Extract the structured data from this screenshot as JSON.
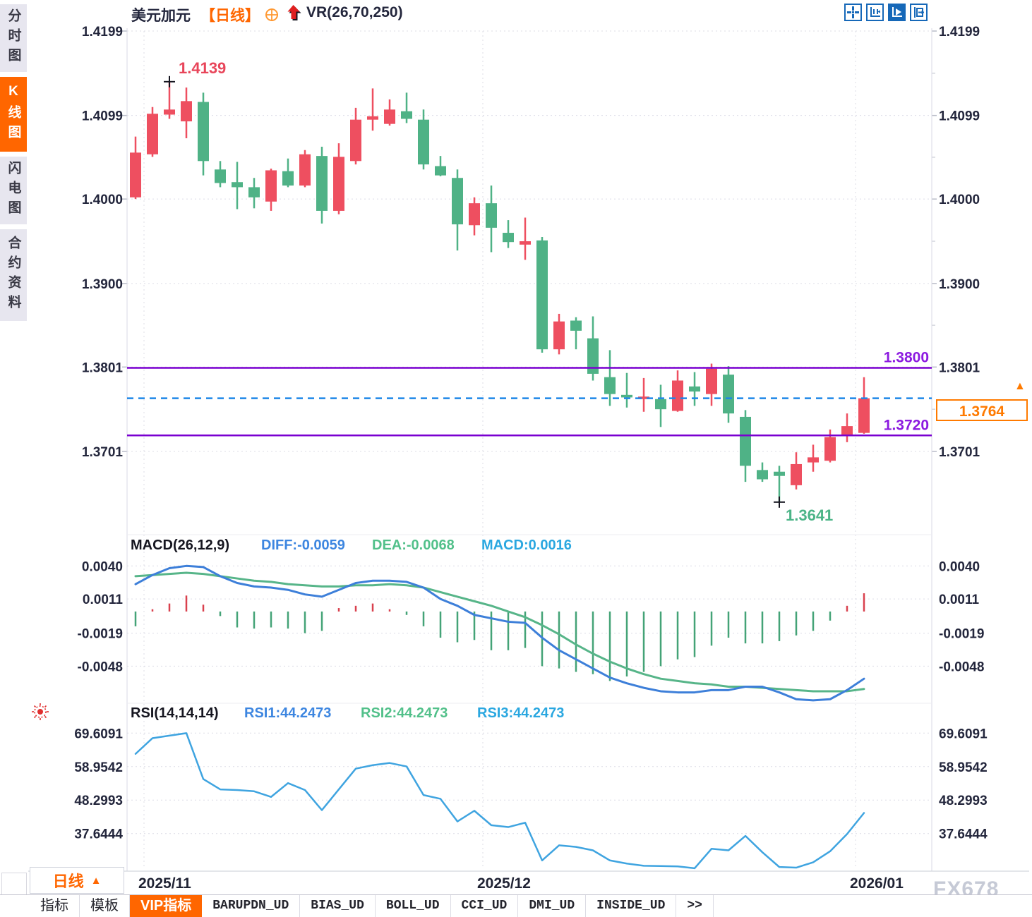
{
  "header": {
    "title": "美元加元",
    "period_tag": "【日线】",
    "indicator": "VR(26,70,250)",
    "icons": [
      "crosshair-target-icon",
      "red-up-arrow-icon"
    ]
  },
  "toolbar": {
    "icons": [
      "move-crosshair-icon",
      "axis-scale-icon",
      "axis-play-icon",
      "shift-right-icon"
    ],
    "active_index": 2
  },
  "sidebar": {
    "items": [
      {
        "label": "分时图",
        "active": false
      },
      {
        "label": "K线图",
        "active": true
      },
      {
        "label": "闪电图",
        "active": false
      },
      {
        "label": "合约资料",
        "active": false
      }
    ]
  },
  "period_selector": {
    "label": "日线",
    "arrow": "▲"
  },
  "price_tag": {
    "label": "1.3764",
    "arrow": "▲"
  },
  "watermark": "FX678",
  "tabs": {
    "items": [
      {
        "label": "指标",
        "active": false,
        "mono": false
      },
      {
        "label": "模板",
        "active": false,
        "mono": false
      },
      {
        "label": "VIP指标",
        "active": true,
        "mono": false
      },
      {
        "label": "BARUPDN_UD",
        "active": false,
        "mono": true
      },
      {
        "label": "BIAS_UD",
        "active": false,
        "mono": true
      },
      {
        "label": "BOLL_UD",
        "active": false,
        "mono": true
      },
      {
        "label": "CCI_UD",
        "active": false,
        "mono": true
      },
      {
        "label": "DMI_UD",
        "active": false,
        "mono": true
      },
      {
        "label": "INSIDE_UD",
        "active": false,
        "mono": true
      },
      {
        "label": ">>",
        "active": false,
        "mono": true
      }
    ]
  },
  "colors": {
    "up": "#ee4f60",
    "down": "#4fb286",
    "hist_up": "#d9414e",
    "hist_down": "#44a377",
    "diff_line": "#3d7fd9",
    "dea_line": "#57b589",
    "diff_text": "#3d86e0",
    "dea_text": "#52c08a",
    "macd_value_text": "#2aa7e0",
    "rsi_line": "#3fa4e0",
    "level": "#7a00d0",
    "level_text": "#8c1ae0",
    "current": "#1d86e8",
    "accent_orange": "#ff6600",
    "axis_text": "#23263c",
    "grid": "#dcdce6",
    "high_text": "#e8455a",
    "low_text": "#4bb487",
    "icon_blue": "#1668b8"
  },
  "chart_data": {
    "type": "candlestick",
    "symbol": "美元加元",
    "period": "日线",
    "y_axis": [
      "1.4199",
      "1.4099",
      "1.4000",
      "1.3900",
      "1.3801",
      "1.3701"
    ],
    "x_labels": [
      {
        "label": "2025/11",
        "index": 0
      },
      {
        "label": "2025/12",
        "index": 20
      },
      {
        "label": "2026/01",
        "index": 42
      }
    ],
    "candles": [
      [
        1.4002,
        1.4074,
        1.4,
        1.4055
      ],
      [
        1.4053,
        1.4109,
        1.405,
        1.4101
      ],
      [
        1.41,
        1.4139,
        1.4095,
        1.4106
      ],
      [
        1.4092,
        1.4132,
        1.4072,
        1.4116
      ],
      [
        1.4115,
        1.4126,
        1.4028,
        1.4045
      ],
      [
        1.4035,
        1.4045,
        1.4014,
        1.4019
      ],
      [
        1.402,
        1.4044,
        1.3988,
        1.4014
      ],
      [
        1.4014,
        1.4025,
        1.3989,
        1.4002
      ],
      [
        1.3997,
        1.4036,
        1.3986,
        1.4034
      ],
      [
        1.4033,
        1.4048,
        1.4014,
        1.4016
      ],
      [
        1.4016,
        1.4058,
        1.4014,
        1.4053
      ],
      [
        1.4051,
        1.4062,
        1.3971,
        1.3986
      ],
      [
        1.3986,
        1.4066,
        1.3982,
        1.405
      ],
      [
        1.4045,
        1.4108,
        1.4041,
        1.4094
      ],
      [
        1.4094,
        1.4131,
        1.4081,
        1.4098
      ],
      [
        1.4089,
        1.4118,
        1.4087,
        1.4106
      ],
      [
        1.4104,
        1.4126,
        1.409,
        1.4095
      ],
      [
        1.4094,
        1.4106,
        1.4035,
        1.4041
      ],
      [
        1.4039,
        1.4051,
        1.4027,
        1.4028
      ],
      [
        1.4025,
        1.4035,
        1.3939,
        1.397
      ],
      [
        1.3969,
        1.4002,
        1.3957,
        1.3995
      ],
      [
        1.3995,
        1.4016,
        1.3937,
        1.3966
      ],
      [
        1.396,
        1.3975,
        1.3942,
        1.3949
      ],
      [
        1.3946,
        1.3978,
        1.3928,
        1.395
      ],
      [
        1.3951,
        1.3955,
        1.3818,
        1.3822
      ],
      [
        1.3822,
        1.3864,
        1.3816,
        1.3855
      ],
      [
        1.3856,
        1.386,
        1.3822,
        1.3844
      ],
      [
        1.3835,
        1.3861,
        1.3785,
        1.3793
      ],
      [
        1.3789,
        1.3821,
        1.3755,
        1.3769
      ],
      [
        1.3768,
        1.3794,
        1.3753,
        1.3765
      ],
      [
        1.3763,
        1.3788,
        1.3748,
        1.3766
      ],
      [
        1.3763,
        1.378,
        1.373,
        1.3751
      ],
      [
        1.3749,
        1.3797,
        1.3748,
        1.3785
      ],
      [
        1.3778,
        1.3795,
        1.3755,
        1.3772
      ],
      [
        1.3769,
        1.3805,
        1.3755,
        1.3799
      ],
      [
        1.3792,
        1.3802,
        1.3735,
        1.3746
      ],
      [
        1.3742,
        1.375,
        1.3665,
        1.3684
      ],
      [
        1.3679,
        1.3688,
        1.3665,
        1.3668
      ],
      [
        1.3677,
        1.3684,
        1.3641,
        1.3672
      ],
      [
        1.3661,
        1.37,
        1.3656,
        1.3686
      ],
      [
        1.3688,
        1.3709,
        1.3677,
        1.3694
      ],
      [
        1.369,
        1.3727,
        1.3688,
        1.3718
      ],
      [
        1.3719,
        1.3746,
        1.3712,
        1.3731
      ],
      [
        1.3723,
        1.3789,
        1.3722,
        1.3764
      ]
    ],
    "high_marker": {
      "value": "1.4139",
      "index": 2
    },
    "low_marker": {
      "value": "1.3641",
      "index": 38
    },
    "levels": [
      {
        "value": 1.38,
        "label": "1.3800"
      },
      {
        "value": 1.372,
        "label": "1.3720"
      }
    ],
    "current_price": {
      "value": 1.3764,
      "label": "1.3764"
    },
    "macd": {
      "title": "MACD(26,12,9)",
      "diff_label": "DIFF:-0.0059",
      "dea_label": "DEA:-0.0068",
      "macd_label": "MACD:0.0016",
      "axis": [
        "0.0040",
        "0.0011",
        "-0.0019",
        "-0.0048"
      ],
      "diff": [
        0.0024,
        0.0032,
        0.0038,
        0.004,
        0.0039,
        0.0031,
        0.0025,
        0.0022,
        0.0021,
        0.0019,
        0.0015,
        0.0013,
        0.0019,
        0.0025,
        0.0027,
        0.0027,
        0.0026,
        0.0021,
        0.0011,
        0.0005,
        -0.0003,
        -0.0006,
        -0.0009,
        -0.001,
        -0.0023,
        -0.0034,
        -0.0042,
        -0.005,
        -0.0058,
        -0.0063,
        -0.0067,
        -0.007,
        -0.0071,
        -0.0071,
        -0.0069,
        -0.0069,
        -0.0066,
        -0.0066,
        -0.0071,
        -0.0077,
        -0.0078,
        -0.0077,
        -0.0069,
        -0.0059
      ],
      "dea": [
        0.0031,
        0.0032,
        0.0033,
        0.0034,
        0.0033,
        0.0031,
        0.0029,
        0.0027,
        0.0026,
        0.0024,
        0.0023,
        0.0022,
        0.0022,
        0.0023,
        0.0023,
        0.0024,
        0.0023,
        0.0021,
        0.0017,
        0.0013,
        0.0009,
        0.0005,
        0.0,
        -0.0005,
        -0.0012,
        -0.002,
        -0.0029,
        -0.0037,
        -0.0044,
        -0.005,
        -0.0055,
        -0.0059,
        -0.0061,
        -0.0063,
        -0.0064,
        -0.0066,
        -0.0066,
        -0.0067,
        -0.0068,
        -0.0069,
        -0.007,
        -0.007,
        -0.007,
        -0.0068
      ],
      "hist": [
        -0.0013,
        0.0002,
        0.0007,
        0.0014,
        0.0006,
        -0.0004,
        -0.0014,
        -0.0015,
        -0.0014,
        -0.0015,
        -0.0019,
        -0.0017,
        0.0003,
        0.0005,
        0.0007,
        0.0002,
        -0.0003,
        -0.0013,
        -0.0023,
        -0.0027,
        -0.0025,
        -0.0034,
        -0.0034,
        -0.0032,
        -0.0048,
        -0.005,
        -0.0053,
        -0.0055,
        -0.0061,
        -0.0057,
        -0.0053,
        -0.0048,
        -0.0042,
        -0.004,
        -0.003,
        -0.0023,
        -0.0028,
        -0.0028,
        -0.0026,
        -0.0021,
        -0.0017,
        -0.0008,
        0.0005,
        0.0016
      ]
    },
    "rsi": {
      "title": "RSI(14,14,14)",
      "rsi1_label": "RSI1:44.2473",
      "rsi2_label": "RSI2:44.2473",
      "rsi3_label": "RSI3:44.2473",
      "axis": [
        "69.6091",
        "58.9542",
        "48.2993",
        "37.6444"
      ],
      "values": [
        63.0,
        68.0,
        68.8,
        69.6,
        55.0,
        51.7,
        51.5,
        51.1,
        49.3,
        53.7,
        51.5,
        45.1,
        51.7,
        58.3,
        59.4,
        60.1,
        59.0,
        49.9,
        48.7,
        41.5,
        44.9,
        40.3,
        39.7,
        41.1,
        29.1,
        33.9,
        33.4,
        32.3,
        29.1,
        28.1,
        27.4,
        27.3,
        27.2,
        26.6,
        32.8,
        32.3,
        36.9,
        31.7,
        27.0,
        26.8,
        28.5,
        32.0,
        37.5,
        44.2
      ]
    }
  }
}
